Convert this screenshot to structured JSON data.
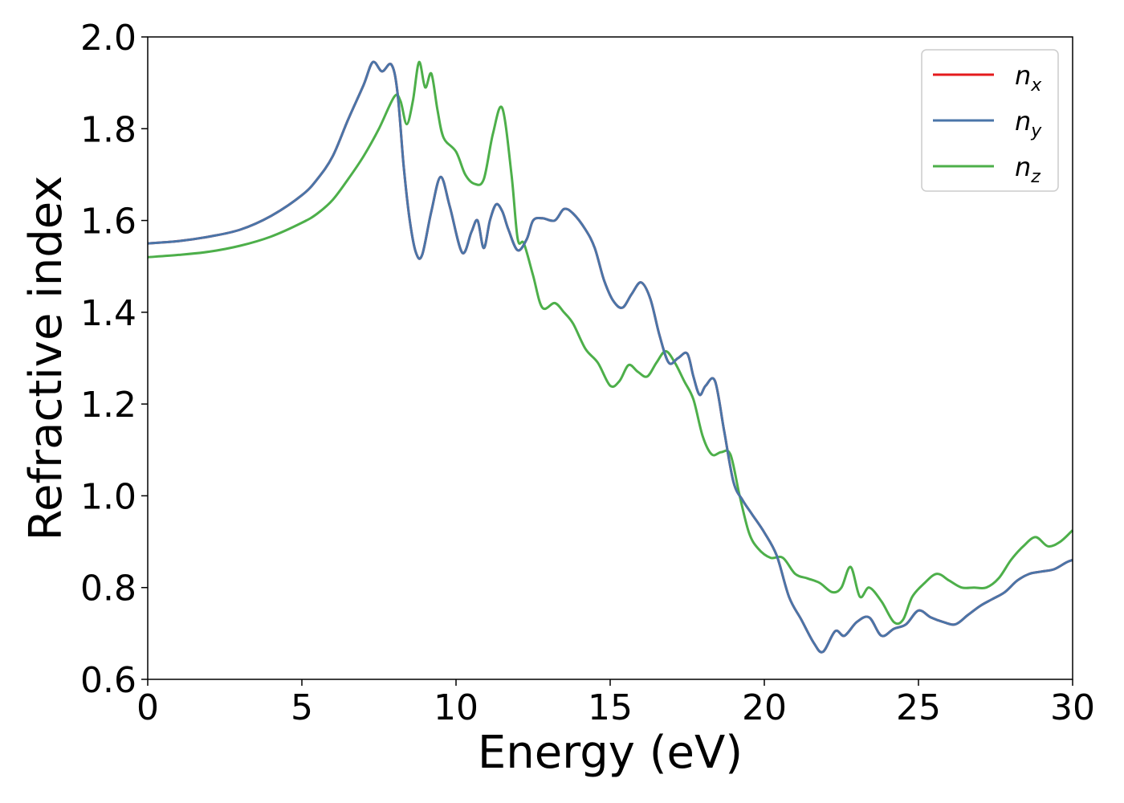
{
  "chart_data": {
    "type": "line",
    "xlabel": "Energy (eV)",
    "ylabel": "Refractive index",
    "xlim": [
      0,
      30
    ],
    "ylim": [
      0.6,
      2.0
    ],
    "xticks": [
      "0",
      "5",
      "10",
      "15",
      "20",
      "25",
      "30"
    ],
    "yticks": [
      "0.6",
      "0.8",
      "1.0",
      "1.2",
      "1.4",
      "1.6",
      "1.8",
      "2.0"
    ],
    "grid": false,
    "legend_position": "top-right",
    "series": [
      {
        "name": "n",
        "subscript": "x",
        "color": "#e41a1c",
        "x": [
          0,
          1,
          2,
          3,
          4,
          5,
          5.5,
          6,
          6.5,
          7,
          7.3,
          7.6,
          7.9,
          8.1,
          8.3,
          8.5,
          8.7,
          8.9,
          9.2,
          9.5,
          9.8,
          10.2,
          10.5,
          10.7,
          10.9,
          11.1,
          11.3,
          11.5,
          11.7,
          12.0,
          12.3,
          12.5,
          12.8,
          13.2,
          13.5,
          13.8,
          14.2,
          14.5,
          14.8,
          15.1,
          15.4,
          15.7,
          16.0,
          16.3,
          16.6,
          16.9,
          17.2,
          17.5,
          17.7,
          17.9,
          18.1,
          18.4,
          18.7,
          19.0,
          19.3,
          19.6,
          20.0,
          20.4,
          20.8,
          21.2,
          21.6,
          21.9,
          22.3,
          22.6,
          23.0,
          23.4,
          23.8,
          24.2,
          24.6,
          25.0,
          25.4,
          25.8,
          26.2,
          26.6,
          27.0,
          27.4,
          27.8,
          28.2,
          28.6,
          29.0,
          29.4,
          29.8,
          30.0
        ],
        "y": [
          1.55,
          1.555,
          1.565,
          1.58,
          1.61,
          1.655,
          1.69,
          1.74,
          1.82,
          1.895,
          1.945,
          1.925,
          1.94,
          1.88,
          1.72,
          1.6,
          1.53,
          1.525,
          1.62,
          1.695,
          1.63,
          1.53,
          1.575,
          1.6,
          1.54,
          1.6,
          1.635,
          1.62,
          1.58,
          1.535,
          1.56,
          1.6,
          1.605,
          1.6,
          1.625,
          1.615,
          1.58,
          1.54,
          1.47,
          1.425,
          1.41,
          1.44,
          1.465,
          1.43,
          1.35,
          1.29,
          1.3,
          1.31,
          1.26,
          1.22,
          1.24,
          1.25,
          1.14,
          1.03,
          0.99,
          0.96,
          0.92,
          0.87,
          0.78,
          0.73,
          0.68,
          0.66,
          0.705,
          0.695,
          0.725,
          0.735,
          0.695,
          0.71,
          0.72,
          0.75,
          0.735,
          0.725,
          0.72,
          0.74,
          0.76,
          0.775,
          0.79,
          0.815,
          0.83,
          0.835,
          0.84,
          0.855,
          0.86
        ]
      },
      {
        "name": "n",
        "subscript": "y",
        "color": "#4a75a8",
        "x": [
          0,
          1,
          2,
          3,
          4,
          5,
          5.5,
          6,
          6.5,
          7,
          7.3,
          7.6,
          7.9,
          8.1,
          8.3,
          8.5,
          8.7,
          8.9,
          9.2,
          9.5,
          9.8,
          10.2,
          10.5,
          10.7,
          10.9,
          11.1,
          11.3,
          11.5,
          11.7,
          12.0,
          12.3,
          12.5,
          12.8,
          13.2,
          13.5,
          13.8,
          14.2,
          14.5,
          14.8,
          15.1,
          15.4,
          15.7,
          16.0,
          16.3,
          16.6,
          16.9,
          17.2,
          17.5,
          17.7,
          17.9,
          18.1,
          18.4,
          18.7,
          19.0,
          19.3,
          19.6,
          20.0,
          20.4,
          20.8,
          21.2,
          21.6,
          21.9,
          22.3,
          22.6,
          23.0,
          23.4,
          23.8,
          24.2,
          24.6,
          25.0,
          25.4,
          25.8,
          26.2,
          26.6,
          27.0,
          27.4,
          27.8,
          28.2,
          28.6,
          29.0,
          29.4,
          29.8,
          30.0
        ],
        "y": [
          1.55,
          1.555,
          1.565,
          1.58,
          1.61,
          1.655,
          1.69,
          1.74,
          1.82,
          1.895,
          1.945,
          1.925,
          1.94,
          1.88,
          1.72,
          1.6,
          1.53,
          1.525,
          1.62,
          1.695,
          1.63,
          1.53,
          1.575,
          1.6,
          1.54,
          1.6,
          1.635,
          1.62,
          1.58,
          1.535,
          1.56,
          1.6,
          1.605,
          1.6,
          1.625,
          1.615,
          1.58,
          1.54,
          1.47,
          1.425,
          1.41,
          1.44,
          1.465,
          1.43,
          1.35,
          1.29,
          1.3,
          1.31,
          1.26,
          1.22,
          1.24,
          1.25,
          1.14,
          1.03,
          0.99,
          0.96,
          0.92,
          0.87,
          0.78,
          0.73,
          0.68,
          0.66,
          0.705,
          0.695,
          0.725,
          0.735,
          0.695,
          0.71,
          0.72,
          0.75,
          0.735,
          0.725,
          0.72,
          0.74,
          0.76,
          0.775,
          0.79,
          0.815,
          0.83,
          0.835,
          0.84,
          0.855,
          0.86
        ]
      },
      {
        "name": "n",
        "subscript": "z",
        "color": "#4daf4a",
        "x": [
          0,
          1,
          2,
          3,
          4,
          5,
          5.5,
          6,
          6.5,
          7,
          7.5,
          8.0,
          8.2,
          8.4,
          8.6,
          8.8,
          9.0,
          9.2,
          9.4,
          9.6,
          10.0,
          10.3,
          10.6,
          10.9,
          11.2,
          11.5,
          11.8,
          12.0,
          12.2,
          12.5,
          12.8,
          13.2,
          13.5,
          13.8,
          14.2,
          14.6,
          15.0,
          15.3,
          15.6,
          15.9,
          16.2,
          16.5,
          16.8,
          17.1,
          17.4,
          17.7,
          18.0,
          18.3,
          18.6,
          18.9,
          19.2,
          19.5,
          19.8,
          20.2,
          20.6,
          21.0,
          21.4,
          21.8,
          22.2,
          22.5,
          22.8,
          23.1,
          23.4,
          23.8,
          24.2,
          24.5,
          24.8,
          25.2,
          25.6,
          26.0,
          26.4,
          26.8,
          27.2,
          27.6,
          28.0,
          28.4,
          28.8,
          29.2,
          29.6,
          30.0
        ],
        "y": [
          1.52,
          1.525,
          1.532,
          1.545,
          1.565,
          1.595,
          1.615,
          1.645,
          1.69,
          1.74,
          1.8,
          1.87,
          1.86,
          1.81,
          1.86,
          1.945,
          1.89,
          1.92,
          1.84,
          1.78,
          1.75,
          1.7,
          1.68,
          1.69,
          1.79,
          1.845,
          1.7,
          1.56,
          1.55,
          1.48,
          1.41,
          1.42,
          1.4,
          1.375,
          1.32,
          1.29,
          1.24,
          1.25,
          1.285,
          1.27,
          1.26,
          1.29,
          1.315,
          1.29,
          1.25,
          1.21,
          1.13,
          1.09,
          1.095,
          1.09,
          1.0,
          0.92,
          0.885,
          0.865,
          0.865,
          0.83,
          0.82,
          0.81,
          0.79,
          0.8,
          0.845,
          0.78,
          0.8,
          0.77,
          0.725,
          0.73,
          0.78,
          0.81,
          0.83,
          0.815,
          0.8,
          0.8,
          0.8,
          0.82,
          0.86,
          0.89,
          0.91,
          0.89,
          0.9,
          0.925
        ]
      }
    ]
  }
}
